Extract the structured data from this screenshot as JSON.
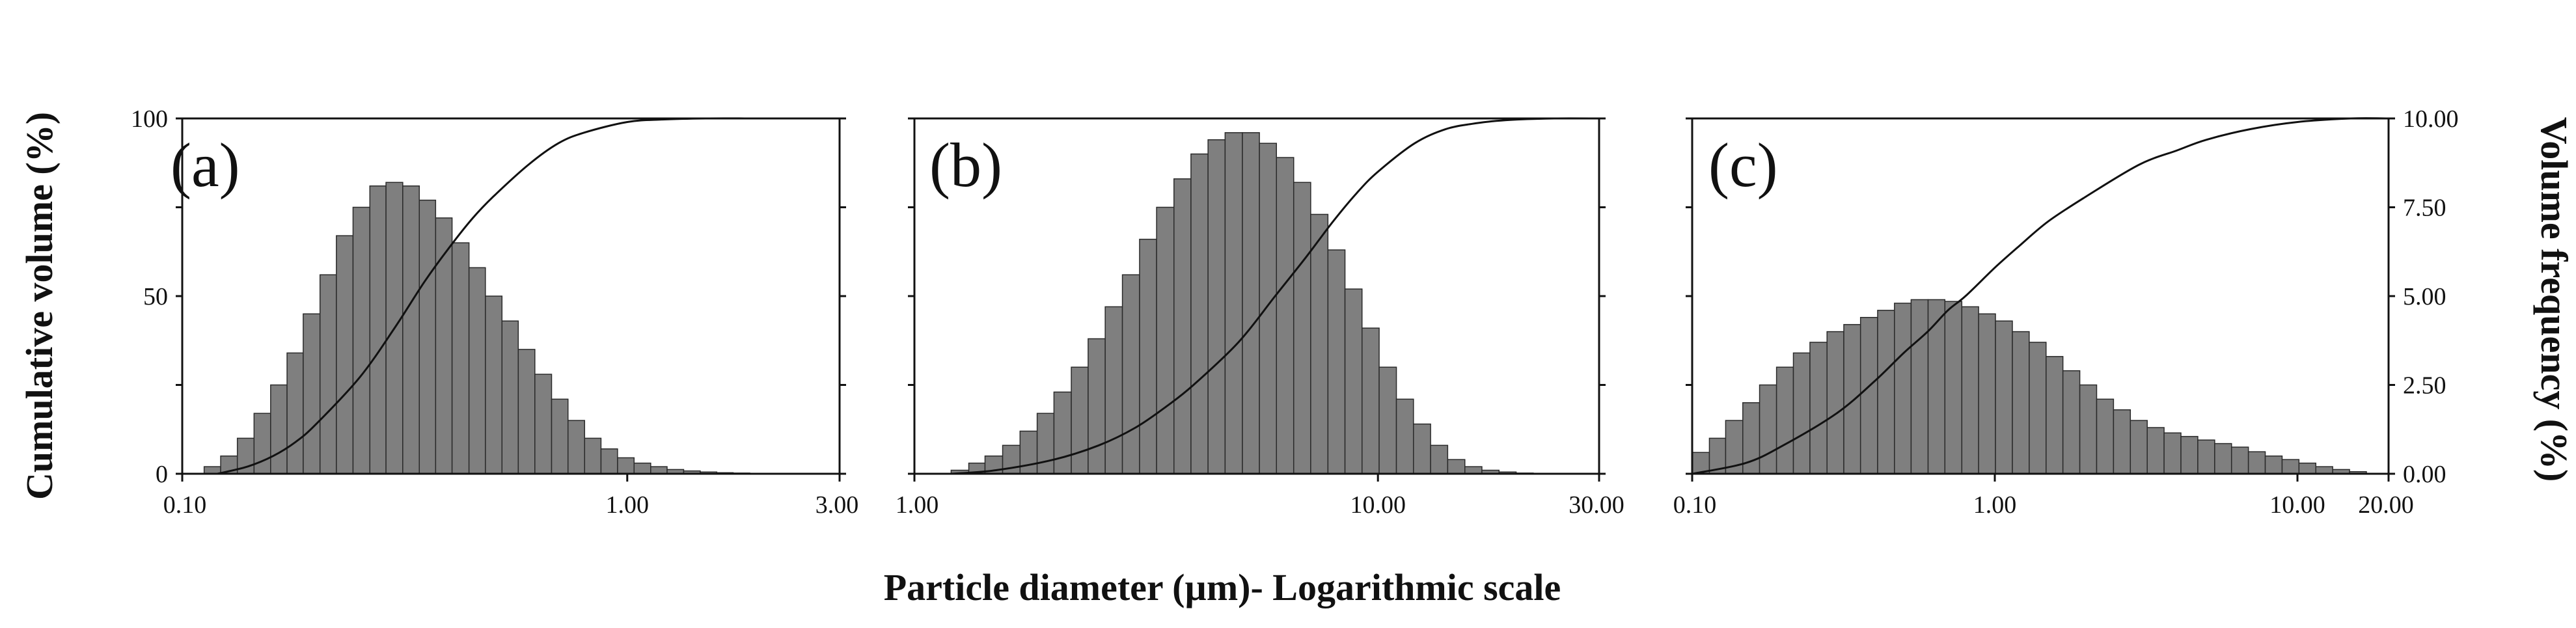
{
  "figure": {
    "left_axis_title": "Cumulative volume (%)",
    "right_axis_title": "Volume frequency (%)",
    "x_axis_title": "Particle diameter (µm)- Logarithmic scale"
  },
  "colors": {
    "bar_fill": "#7f7f7f",
    "bar_stroke": "#2a2a2a",
    "line": "#111111",
    "frame": "#111111"
  },
  "chart_data": [
    {
      "type": "bar",
      "panel_label": "(a)",
      "x_scale": "log",
      "xlim": [
        0.1,
        3.0
      ],
      "x_tick_values": [
        0.1,
        1.0,
        3.0
      ],
      "x_tick_labels": [
        "0.10",
        "1.00",
        "3.00"
      ],
      "ylabel_left": "Cumulative volume (%)",
      "ylim_left": [
        0,
        100
      ],
      "y_left_tick_values": [
        0,
        50,
        100
      ],
      "y_left_tick_labels": [
        "0",
        "50",
        "100"
      ],
      "ylim_right": [
        0,
        10
      ],
      "series": [
        {
          "name": "Volume frequency",
          "kind": "bar",
          "axis": "right",
          "bin_edges": [
            0.112,
            0.122,
            0.133,
            0.145,
            0.158,
            0.172,
            0.187,
            0.204,
            0.222,
            0.242,
            0.264,
            0.287,
            0.313,
            0.341,
            0.371,
            0.404,
            0.441,
            0.48,
            0.523,
            0.569,
            0.62,
            0.676,
            0.736,
            0.802,
            0.873,
            0.951,
            1.036,
            1.129,
            1.229,
            1.339,
            1.459,
            1.589,
            1.73,
            1.885,
            2.053
          ],
          "values": [
            0.2,
            0.5,
            1.0,
            1.7,
            2.5,
            3.4,
            4.5,
            5.6,
            6.7,
            7.5,
            8.1,
            8.2,
            8.1,
            7.7,
            7.2,
            6.5,
            5.8,
            5.0,
            4.3,
            3.5,
            2.8,
            2.1,
            1.5,
            1.0,
            0.7,
            0.45,
            0.3,
            0.2,
            0.12,
            0.08,
            0.05,
            0.03,
            0.02,
            0.01
          ]
        },
        {
          "name": "Cumulative volume",
          "kind": "line",
          "axis": "left",
          "x": [
            0.12,
            0.14,
            0.16,
            0.18,
            0.2,
            0.25,
            0.3,
            0.35,
            0.4,
            0.45,
            0.5,
            0.6,
            0.7,
            0.8,
            1.0,
            1.2,
            1.5,
            2.0,
            3.0
          ],
          "y": [
            0,
            2,
            5,
            9,
            14,
            27,
            41,
            54,
            64,
            72,
            78,
            87,
            93,
            96,
            99,
            99.7,
            100,
            100,
            100
          ]
        }
      ]
    },
    {
      "type": "bar",
      "panel_label": "(b)",
      "x_scale": "log",
      "xlim": [
        1.0,
        30.0
      ],
      "x_tick_values": [
        1.0,
        10.0,
        30.0
      ],
      "x_tick_labels": [
        "1.00",
        "10.00",
        "30.00"
      ],
      "ylim_left": [
        0,
        100
      ],
      "ylim_right": [
        0,
        10
      ],
      "series": [
        {
          "name": "Volume frequency",
          "kind": "bar",
          "axis": "right",
          "bin_edges": [
            1.2,
            1.31,
            1.42,
            1.55,
            1.69,
            1.84,
            2.0,
            2.18,
            2.37,
            2.58,
            2.81,
            3.06,
            3.33,
            3.63,
            3.95,
            4.3,
            4.68,
            5.1,
            5.55,
            6.04,
            6.58,
            7.16,
            7.8,
            8.49,
            9.24,
            10.06,
            10.96,
            11.93,
            12.99,
            14.14,
            15.4,
            16.76,
            18.25,
            19.87,
            21.63,
            23.55
          ],
          "values": [
            0.1,
            0.3,
            0.5,
            0.8,
            1.2,
            1.7,
            2.3,
            3.0,
            3.8,
            4.7,
            5.6,
            6.6,
            7.5,
            8.3,
            9.0,
            9.4,
            9.6,
            9.6,
            9.3,
            8.9,
            8.2,
            7.3,
            6.3,
            5.2,
            4.1,
            3.0,
            2.1,
            1.4,
            0.8,
            0.4,
            0.2,
            0.1,
            0.05,
            0.02,
            0.01
          ]
        },
        {
          "name": "Cumulative volume",
          "kind": "line",
          "axis": "left",
          "x": [
            1.2,
            1.5,
            2.0,
            2.5,
            3.0,
            3.5,
            4.0,
            5.0,
            6.0,
            7.0,
            8.0,
            9.0,
            10.0,
            12.0,
            14.0,
            16.0,
            18.0,
            20.0,
            24.0,
            30.0
          ],
          "y": [
            0,
            1,
            4,
            8,
            13,
            19,
            25,
            37,
            50,
            61,
            71,
            79,
            85,
            93,
            97,
            98.5,
            99.3,
            99.7,
            100,
            100
          ]
        }
      ]
    },
    {
      "type": "bar",
      "panel_label": "(c)",
      "x_scale": "log",
      "xlim": [
        0.1,
        20.0
      ],
      "x_tick_values": [
        0.1,
        1.0,
        10.0,
        20.0
      ],
      "x_tick_labels": [
        "0.10",
        "1.00",
        "10.00",
        "20.00"
      ],
      "ylim_left": [
        0,
        100
      ],
      "ylabel_right": "Volume frequency (%)",
      "ylim_right": [
        0,
        10
      ],
      "y_right_tick_values": [
        0,
        2.5,
        5,
        7.5,
        10
      ],
      "y_right_tick_labels": [
        "0.00",
        "2.50",
        "5.00",
        "7.50",
        "10.00"
      ],
      "series": [
        {
          "name": "Volume frequency",
          "kind": "bar",
          "axis": "right",
          "bin_edges": [
            0.1,
            0.114,
            0.129,
            0.147,
            0.167,
            0.19,
            0.216,
            0.245,
            0.279,
            0.317,
            0.36,
            0.41,
            0.466,
            0.529,
            0.602,
            0.684,
            0.778,
            0.884,
            1.005,
            1.143,
            1.299,
            1.477,
            1.679,
            1.909,
            2.17,
            2.467,
            2.805,
            3.189,
            3.625,
            4.121,
            4.685,
            5.327,
            6.056,
            6.885,
            7.827,
            8.898,
            10.116,
            11.5,
            13.074,
            14.864,
            16.898
          ],
          "values": [
            0.6,
            1.0,
            1.5,
            2.0,
            2.5,
            3.0,
            3.4,
            3.7,
            4.0,
            4.2,
            4.4,
            4.6,
            4.8,
            4.9,
            4.9,
            4.85,
            4.7,
            4.5,
            4.3,
            4.0,
            3.7,
            3.3,
            2.9,
            2.5,
            2.1,
            1.8,
            1.5,
            1.3,
            1.15,
            1.05,
            0.95,
            0.85,
            0.75,
            0.62,
            0.5,
            0.4,
            0.3,
            0.2,
            0.12,
            0.06
          ]
        },
        {
          "name": "Cumulative volume",
          "kind": "line",
          "axis": "left",
          "x": [
            0.1,
            0.15,
            0.2,
            0.3,
            0.4,
            0.5,
            0.6,
            0.7,
            0.8,
            1.0,
            1.2,
            1.5,
            2.0,
            3.0,
            4.0,
            5.0,
            7.0,
            10.0,
            15.0,
            20.0
          ],
          "y": [
            0,
            3,
            8,
            17,
            26,
            34,
            40,
            46,
            50,
            58,
            64,
            71,
            78,
            87,
            91,
            94,
            97,
            99,
            100,
            100
          ]
        }
      ]
    }
  ]
}
